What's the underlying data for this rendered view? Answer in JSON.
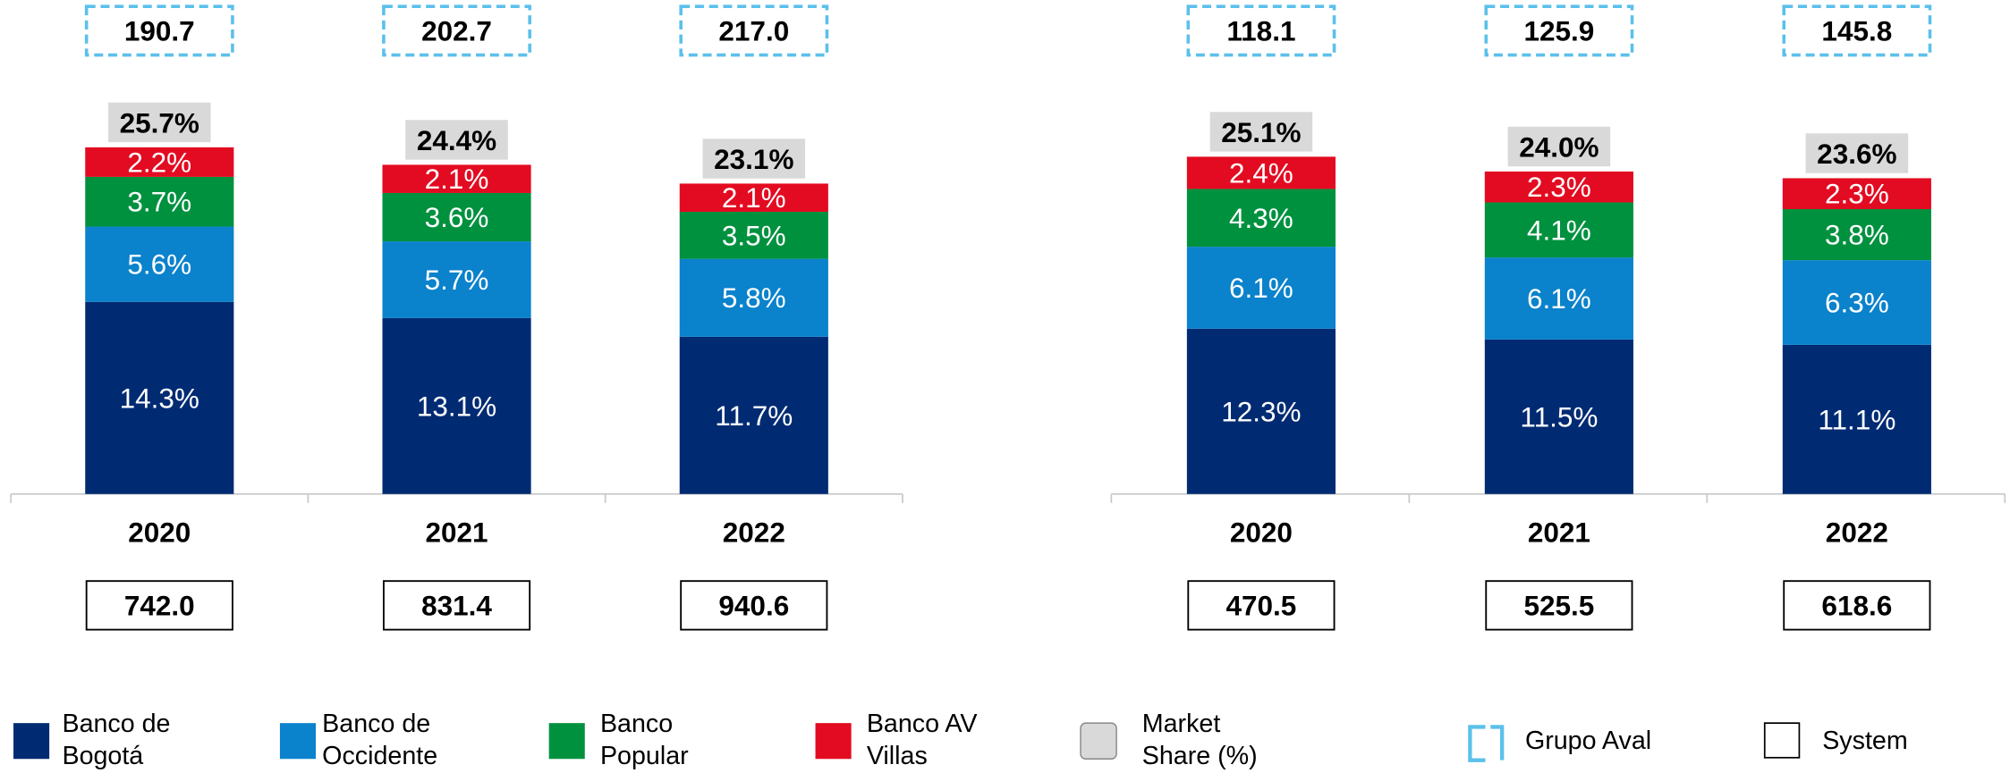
{
  "chart_data": [
    {
      "type": "bar",
      "stacked": true,
      "categories": [
        "2020",
        "2021",
        "2022"
      ],
      "series": [
        {
          "values": [
            14.3,
            13.1,
            11.7
          ],
          "value_labels": [
            "14.3%",
            "13.1%",
            "11.7%"
          ]
        },
        {
          "values": [
            5.6,
            5.7,
            5.8
          ],
          "value_labels": [
            "5.6%",
            "5.7%",
            "5.8%"
          ]
        },
        {
          "values": [
            3.7,
            3.6,
            3.5
          ],
          "value_labels": [
            "3.7%",
            "3.6%",
            "3.5%"
          ]
        },
        {
          "values": [
            2.2,
            2.1,
            2.1
          ],
          "value_labels": [
            "2.2%",
            "2.1%",
            "2.1%"
          ]
        }
      ],
      "market_share": {
        "values": [
          25.7,
          24.4,
          23.1
        ],
        "value_labels": [
          "25.7%",
          "24.4%",
          "23.1%"
        ]
      },
      "group_totals": {
        "values": [
          190.7,
          202.7,
          217.0
        ],
        "value_labels": [
          "190.7",
          "202.7",
          "217.0"
        ]
      },
      "system_totals": {
        "values": [
          742.0,
          831.4,
          940.6
        ],
        "value_labels": [
          "742.0",
          "831.4",
          "940.6"
        ]
      }
    },
    {
      "type": "bar",
      "stacked": true,
      "categories": [
        "2020",
        "2021",
        "2022"
      ],
      "series": [
        {
          "values": [
            12.3,
            11.5,
            11.1
          ],
          "value_labels": [
            "12.3%",
            "11.5%",
            "11.1%"
          ]
        },
        {
          "values": [
            6.1,
            6.1,
            6.3
          ],
          "value_labels": [
            "6.1%",
            "6.1%",
            "6.3%"
          ]
        },
        {
          "values": [
            4.3,
            4.1,
            3.8
          ],
          "value_labels": [
            "4.3%",
            "4.1%",
            "3.8%"
          ]
        },
        {
          "values": [
            2.4,
            2.3,
            2.3
          ],
          "value_labels": [
            "2.4%",
            "2.3%",
            "2.3%"
          ]
        }
      ],
      "market_share": {
        "values": [
          25.1,
          24.0,
          23.6
        ],
        "value_labels": [
          "25.1%",
          "24.0%",
          "23.6%"
        ]
      },
      "group_totals": {
        "values": [
          118.1,
          125.9,
          145.8
        ],
        "value_labels": [
          "118.1",
          "125.9",
          "145.8"
        ]
      },
      "system_totals": {
        "values": [
          470.5,
          525.5,
          618.6
        ],
        "value_labels": [
          "470.5",
          "525.5",
          "618.6"
        ]
      }
    }
  ],
  "legend": {
    "series": [
      {
        "name": "Banco de Bogotá",
        "color": "#002b73"
      },
      {
        "name": "Banco de Occidente",
        "color": "#0a82cc"
      },
      {
        "name": "Banco Popular",
        "color": "#00913f"
      },
      {
        "name": "Banco AV Villas",
        "color": "#e30b21"
      }
    ],
    "market_share": "Market Share (%)",
    "group": "Grupo Aval",
    "system": "System"
  }
}
